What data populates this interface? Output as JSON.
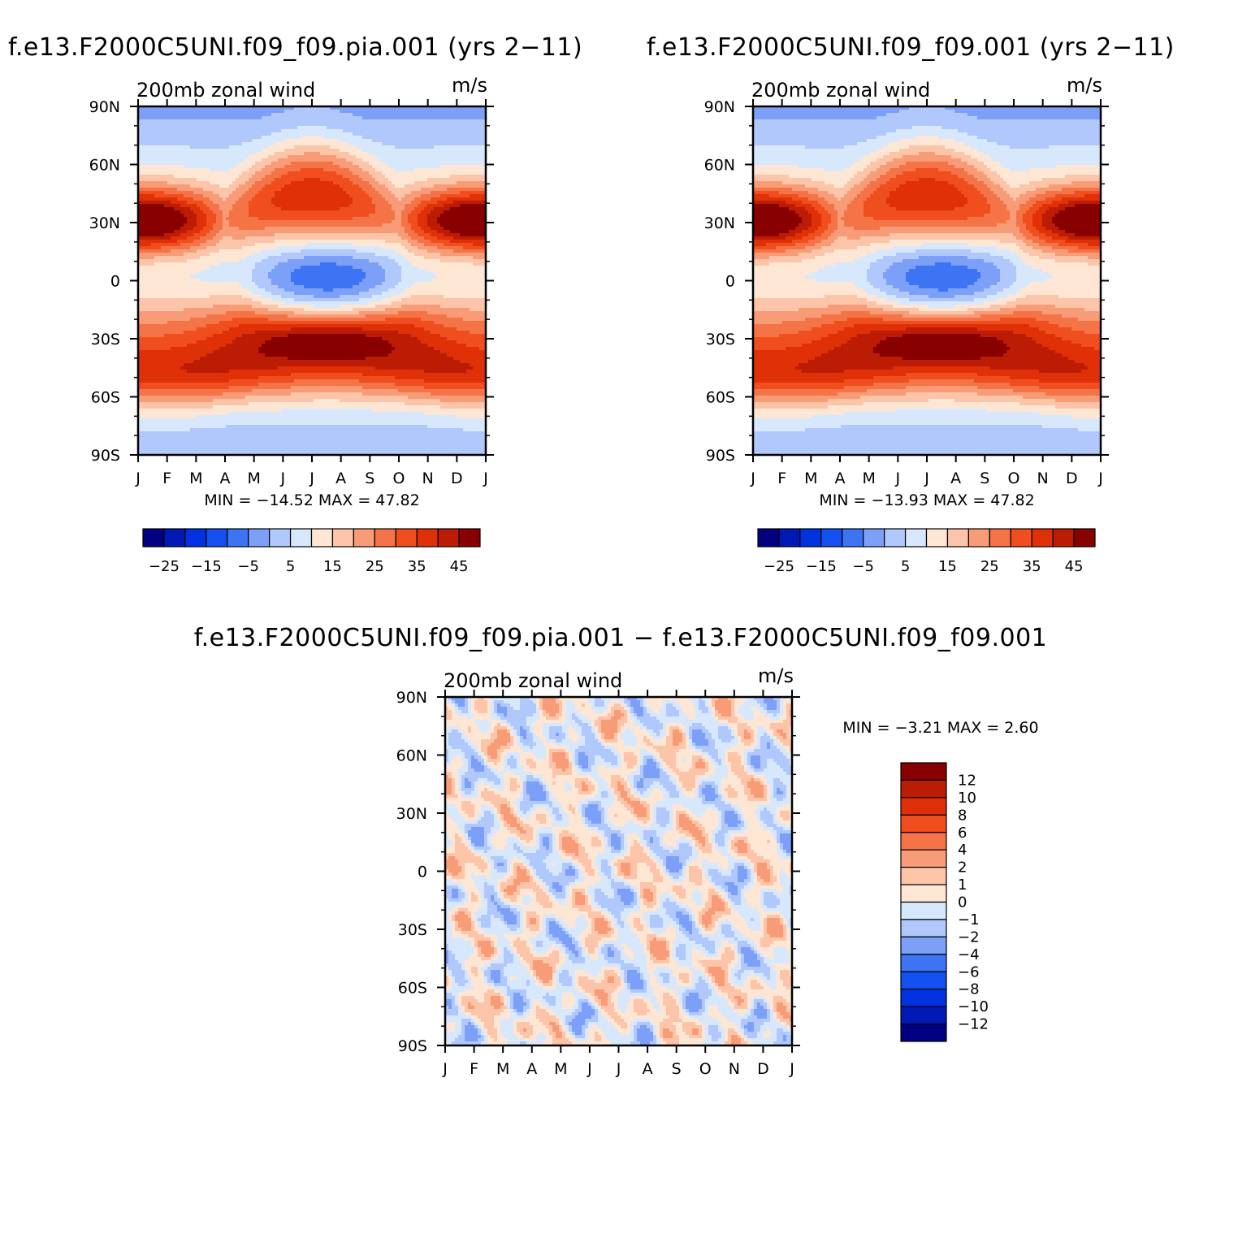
{
  "chart_data": [
    {
      "id": "panel1",
      "type": "heatmap",
      "title": "f.e13.F2000C5UNI.f09_f09.pia.001 (yrs 2−11)",
      "left_label": "200mb zonal wind",
      "right_label": "m/s",
      "x_categories": [
        "J",
        "F",
        "M",
        "A",
        "M",
        "J",
        "J",
        "A",
        "S",
        "O",
        "N",
        "D",
        "J"
      ],
      "y_ticks": [
        "90N",
        "60N",
        "30N",
        "0",
        "30S",
        "60S",
        "90S"
      ],
      "y_range": [
        -90,
        90
      ],
      "stats": "MIN = −14.52 MAX =   47.82",
      "min": -14.52,
      "max": 47.82,
      "levels": [
        -30,
        -25,
        -20,
        -15,
        -10,
        -5,
        0,
        5,
        10,
        15,
        20,
        25,
        30,
        35,
        40,
        45
      ],
      "colorbar_labels": [
        "−25",
        "−15",
        "−5",
        "5",
        "15",
        "25",
        "35",
        "45"
      ],
      "field": "base"
    },
    {
      "id": "panel2",
      "type": "heatmap",
      "title": "f.e13.F2000C5UNI.f09_f09.001 (yrs 2−11)",
      "left_label": "200mb zonal wind",
      "right_label": "m/s",
      "x_categories": [
        "J",
        "F",
        "M",
        "A",
        "M",
        "J",
        "J",
        "A",
        "S",
        "O",
        "N",
        "D",
        "J"
      ],
      "y_ticks": [
        "90N",
        "60N",
        "30N",
        "0",
        "30S",
        "60S",
        "90S"
      ],
      "y_range": [
        -90,
        90
      ],
      "stats": "MIN = −13.93 MAX =   47.82",
      "min": -13.93,
      "max": 47.82,
      "levels": [
        -30,
        -25,
        -20,
        -15,
        -10,
        -5,
        0,
        5,
        10,
        15,
        20,
        25,
        30,
        35,
        40,
        45
      ],
      "colorbar_labels": [
        "−25",
        "−15",
        "−5",
        "5",
        "15",
        "25",
        "35",
        "45"
      ],
      "field": "base"
    },
    {
      "id": "panel3",
      "type": "heatmap",
      "title": "f.e13.F2000C5UNI.f09_f09.pia.001 − f.e13.F2000C5UNI.f09_f09.001",
      "left_label": "200mb zonal wind",
      "right_label": "m/s",
      "x_categories": [
        "J",
        "F",
        "M",
        "A",
        "M",
        "J",
        "J",
        "A",
        "S",
        "O",
        "N",
        "D",
        "J"
      ],
      "y_ticks": [
        "90N",
        "60N",
        "30N",
        "0",
        "30S",
        "60S",
        "90S"
      ],
      "y_range": [
        -90,
        90
      ],
      "stats": "MIN =  −3.21 MAX =    2.60",
      "min": -3.21,
      "max": 2.6,
      "levels": [
        -12,
        -10,
        -8,
        -6,
        -4,
        -2,
        -1,
        0,
        1,
        2,
        4,
        6,
        8,
        10,
        12
      ],
      "colorbar_labels": [
        "12",
        "10",
        "8",
        "6",
        "4",
        "2",
        "1",
        "0",
        "−1",
        "−2",
        "−4",
        "−6",
        "−8",
        "−10",
        "−12"
      ],
      "field": "diff"
    }
  ],
  "colors": {
    "palette": [
      "#000080",
      "#0018b4",
      "#0032e0",
      "#1450f0",
      "#3c74f4",
      "#7ca0f8",
      "#b0c8fc",
      "#d8e8fc",
      "#fee6d4",
      "#fcc4a8",
      "#f89c78",
      "#f47448",
      "#f04e1e",
      "#e03008",
      "#bc1c04",
      "#880000"
    ]
  }
}
